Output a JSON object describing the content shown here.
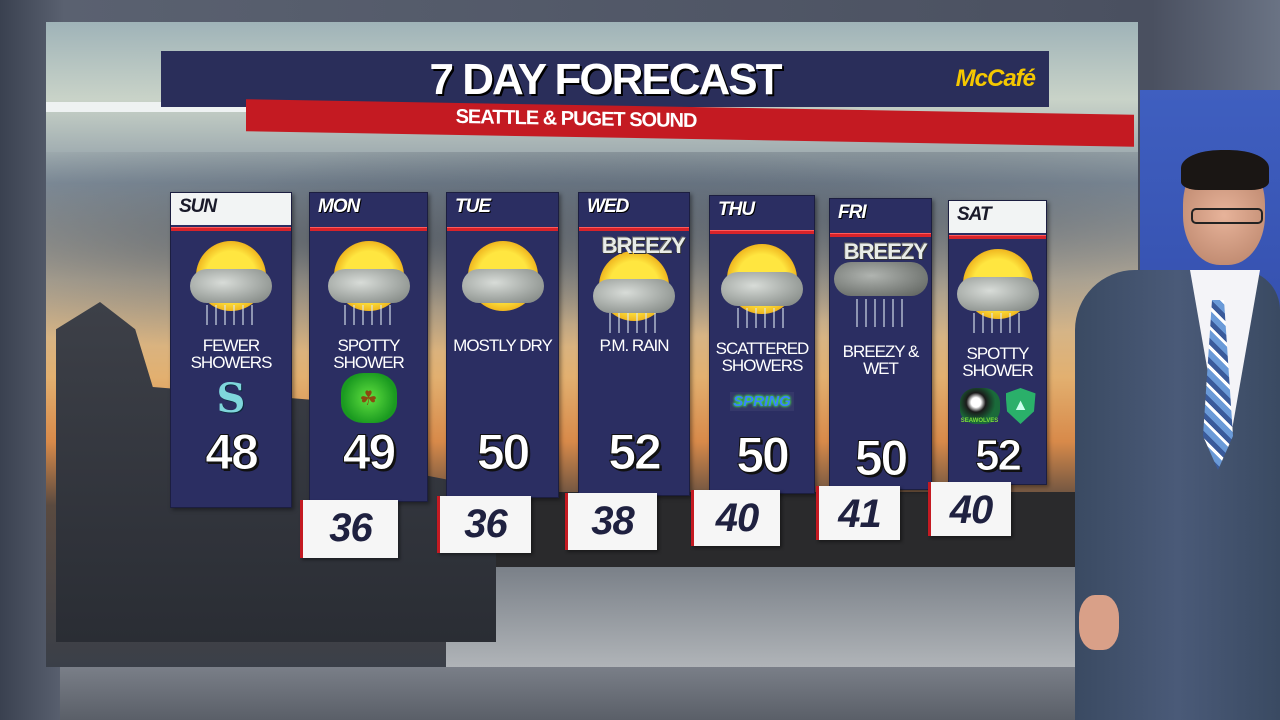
{
  "header": {
    "title": "7 DAY FORECAST",
    "subtitle": "SEATTLE & PUGET SOUND",
    "sponsor": "McCafé"
  },
  "colors": {
    "panel_navy": "#2b2e62",
    "accent_red": "#c41a22",
    "sponsor_yellow": "#f5c800"
  },
  "days": [
    {
      "day": "SUN",
      "condition": "FEWER SHOWERS",
      "icon": "sun-cloud-showers-icon",
      "badge": "seattle-kraken-logo",
      "high": "48",
      "low": ""
    },
    {
      "day": "MON",
      "condition": "SPOTTY SHOWER",
      "icon": "sun-cloud-showers-icon",
      "badge": "leprechaun-clover-icon",
      "high": "49",
      "low": "36"
    },
    {
      "day": "TUE",
      "condition": "MOSTLY DRY",
      "icon": "partly-cloudy-icon",
      "badge": "",
      "high": "50",
      "low": "36"
    },
    {
      "day": "WED",
      "condition": "P.M. RAIN",
      "icon": "sun-cloud-rain-icon",
      "tag": "BREEZY",
      "high": "52",
      "low": "38"
    },
    {
      "day": "THU",
      "condition": "SCATTERED SHOWERS",
      "icon": "sun-cloud-showers-icon",
      "badge_text": "SPRING",
      "high": "50",
      "low": "40"
    },
    {
      "day": "FRI",
      "condition": "BREEZY & WET",
      "icon": "rain-cloud-icon",
      "tag": "BREEZY",
      "high": "50",
      "low": "41"
    },
    {
      "day": "SAT",
      "condition": "SPOTTY SHOWER",
      "icon": "sun-cloud-showers-icon",
      "badge": "seawolves-sounders-logos",
      "high": "52",
      "low": "40"
    }
  ]
}
